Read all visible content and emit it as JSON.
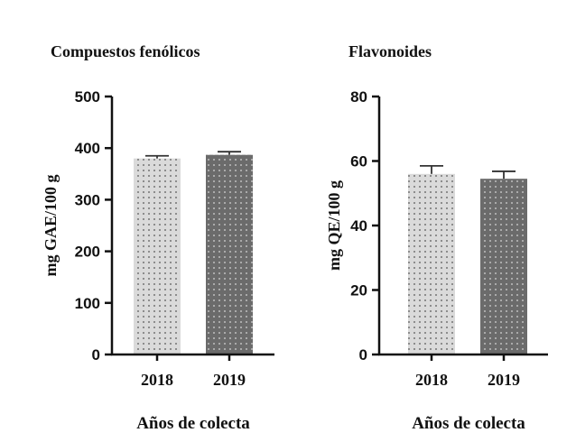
{
  "chart_data": [
    {
      "type": "bar",
      "title": "Compuestos fenólicos",
      "xlabel": "Años de colecta",
      "ylabel": "mg GAE/100 g",
      "categories": [
        "2018",
        "2019"
      ],
      "values": [
        380,
        387
      ],
      "errors": [
        5,
        6
      ],
      "ylim": [
        0,
        500
      ],
      "yticks": [
        "0",
        "100",
        "200",
        "300",
        "400",
        "500"
      ],
      "bar_colors": [
        "#d9d9d9",
        "#6e6e6e"
      ],
      "grid": false
    },
    {
      "type": "bar",
      "title": "Flavonoides",
      "xlabel": "Años de colecta",
      "ylabel": "mg QE/100 g",
      "categories": [
        "2018",
        "2019"
      ],
      "values": [
        56,
        54.5
      ],
      "errors": [
        2.5,
        2.3
      ],
      "ylim": [
        0,
        80
      ],
      "yticks": [
        "0",
        "20",
        "40",
        "60",
        "80"
      ],
      "bar_colors": [
        "#d9d9d9",
        "#7a7a7a"
      ],
      "grid": false
    }
  ]
}
